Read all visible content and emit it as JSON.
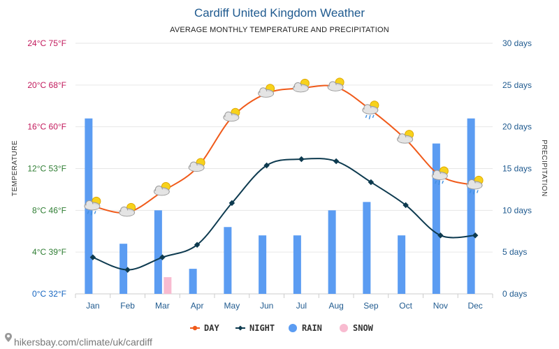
{
  "chart_data": {
    "type": "line+bar",
    "title": "Cardiff United Kingdom Weather",
    "subtitle": "AVERAGE MONTHLY TEMPERATURE AND PRECIPITATION",
    "categories": [
      "Jan",
      "Feb",
      "Mar",
      "Apr",
      "May",
      "Jun",
      "Jul",
      "Aug",
      "Sep",
      "Oct",
      "Nov",
      "Dec"
    ],
    "y_left": {
      "label": "TEMPERATURE",
      "range": [
        0,
        24
      ],
      "ticks": [
        {
          "value": 0,
          "label": "0°C 32°F",
          "color": "#1565c0"
        },
        {
          "value": 4,
          "label": "4°C 39°F",
          "color": "#2e7d32"
        },
        {
          "value": 8,
          "label": "8°C 46°F",
          "color": "#2e7d32"
        },
        {
          "value": 12,
          "label": "12°C 53°F",
          "color": "#2e7d32"
        },
        {
          "value": 16,
          "label": "16°C 60°F",
          "color": "#c2185b"
        },
        {
          "value": 20,
          "label": "20°C 68°F",
          "color": "#c2185b"
        },
        {
          "value": 24,
          "label": "24°C 75°F",
          "color": "#c2185b"
        }
      ]
    },
    "y_right": {
      "label": "PRECIPITATION",
      "range": [
        0,
        30
      ],
      "ticks": [
        {
          "value": 0,
          "label": "0 days"
        },
        {
          "value": 5,
          "label": "5 days"
        },
        {
          "value": 10,
          "label": "10 days"
        },
        {
          "value": 15,
          "label": "15 days"
        },
        {
          "value": 20,
          "label": "20 days"
        },
        {
          "value": 25,
          "label": "25 days"
        },
        {
          "value": 30,
          "label": "30 days"
        }
      ],
      "color": "#1f5a8f"
    },
    "series": [
      {
        "name": "DAY",
        "kind": "line",
        "axis": "left",
        "color": "#f05a1a",
        "values": [
          8.4,
          7.8,
          9.8,
          12.1,
          16.9,
          19.2,
          19.7,
          19.8,
          17.6,
          14.8,
          11.3,
          10.4
        ]
      },
      {
        "name": "NIGHT",
        "kind": "line",
        "axis": "left",
        "color": "#0d3a4f",
        "values": [
          3.5,
          2.3,
          3.5,
          4.7,
          8.7,
          12.3,
          12.9,
          12.7,
          10.7,
          8.5,
          5.6,
          5.6
        ]
      },
      {
        "name": "RAIN",
        "kind": "bar",
        "axis": "right",
        "color": "#5b9cf2",
        "values": [
          21,
          6,
          10,
          3,
          8,
          7,
          7,
          10,
          11,
          7,
          18,
          21
        ]
      },
      {
        "name": "SNOW",
        "kind": "bar",
        "axis": "right",
        "color": "#f8bbd0",
        "values": [
          0,
          0,
          2,
          0,
          0,
          0,
          0,
          0,
          0,
          0,
          0,
          0
        ]
      }
    ],
    "weather_icons": [
      "cloud-sun-rain",
      "cloud-sun",
      "cloud-sun",
      "cloud-sun",
      "cloud-sun",
      "cloud-sun",
      "cloud-sun",
      "cloud-sun",
      "cloud-sun-rain",
      "cloud-sun",
      "cloud-sun-rain",
      "cloud-sun-rain"
    ],
    "grid": true,
    "legend": {
      "position": "bottom-center"
    }
  },
  "footer": {
    "source": "hikersbay.com/climate/uk/cardiff"
  },
  "colors": {
    "title": "#1f5a8f",
    "grid": "#e6e6e6"
  }
}
